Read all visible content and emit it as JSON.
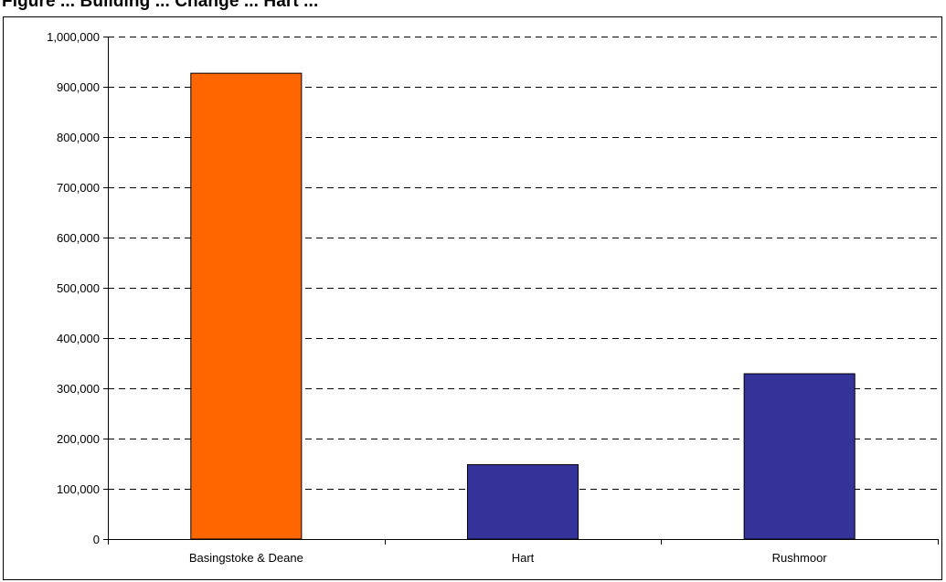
{
  "figure": {
    "title_partial": "Figure ... Building ... Change ... Hart ..."
  },
  "colors": {
    "highlight": "#FF6600",
    "default": "#333399",
    "gridline": "#000000",
    "axis": "#000000"
  },
  "chart_data": {
    "type": "bar",
    "categories": [
      "Basingstoke & Deane",
      "Hart",
      "Rushmoor"
    ],
    "values": [
      927000,
      148000,
      329000
    ],
    "bar_colors": [
      "#FF6600",
      "#333399",
      "#333399"
    ],
    "ylim": [
      0,
      1000000
    ],
    "yticks": [
      0,
      100000,
      200000,
      300000,
      400000,
      500000,
      600000,
      700000,
      800000,
      900000,
      1000000
    ],
    "ytick_labels": [
      "0",
      "100,000",
      "200,000",
      "300,000",
      "400,000",
      "500,000",
      "600,000",
      "700,000",
      "800,000",
      "900,000",
      "1,000,000"
    ],
    "grid": true,
    "grid_style": "dashed",
    "xlabel": "",
    "ylabel": ""
  }
}
